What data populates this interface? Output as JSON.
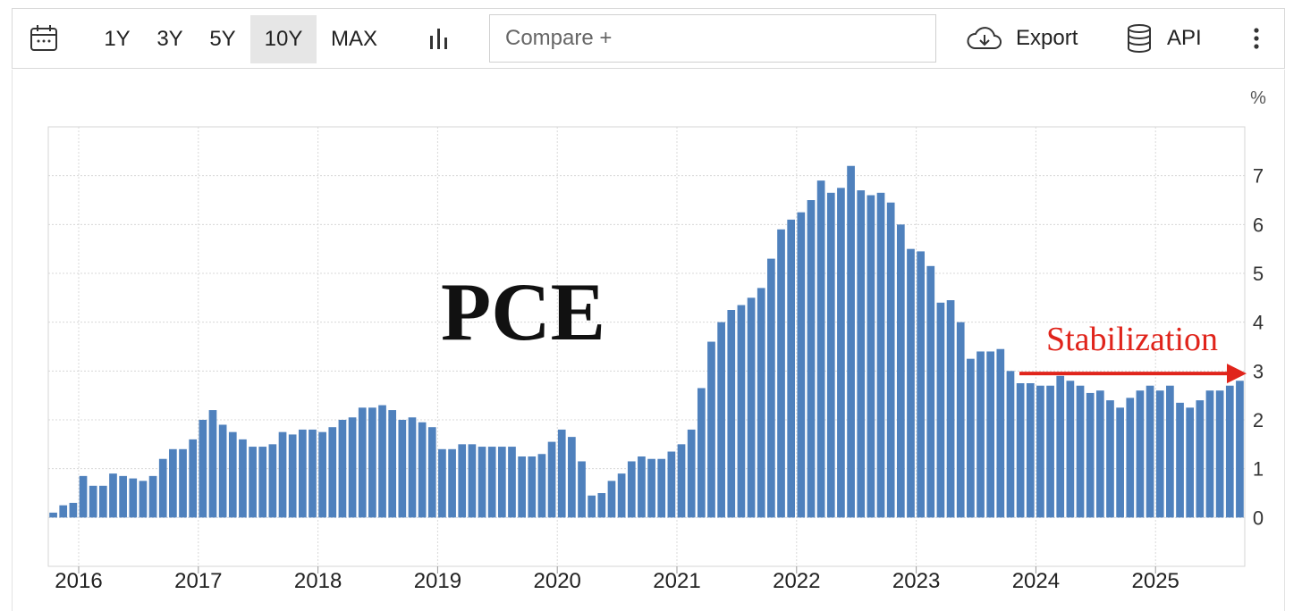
{
  "toolbar": {
    "ranges": [
      "1Y",
      "3Y",
      "5Y",
      "10Y",
      "MAX"
    ],
    "active_range": "10Y",
    "compare_placeholder": "Compare +",
    "export_label": "Export",
    "api_label": "API",
    "icons": [
      "calendar-icon",
      "bar-chart-icon",
      "cloud-download-icon",
      "database-icon",
      "more-vertical-icon"
    ]
  },
  "chart_data": {
    "type": "bar",
    "title": "PCE",
    "unit_label": "%",
    "annotation": "Stabilization",
    "annotation_color": "#e0241b",
    "bar_color": "#4f81bd",
    "ylim": [
      -1,
      8
    ],
    "yticks": [
      0,
      1,
      2,
      3,
      4,
      5,
      6,
      7
    ],
    "x_ticks": [
      "2016",
      "2017",
      "2018",
      "2019",
      "2020",
      "2021",
      "2022",
      "2023",
      "2024",
      "2025"
    ],
    "x_start": "2015-10",
    "values": [
      0.1,
      0.25,
      0.3,
      0.85,
      0.65,
      0.65,
      0.9,
      0.85,
      0.8,
      0.75,
      0.85,
      1.2,
      1.4,
      1.4,
      1.6,
      2.0,
      2.2,
      1.9,
      1.75,
      1.6,
      1.45,
      1.45,
      1.5,
      1.75,
      1.7,
      1.8,
      1.8,
      1.75,
      1.85,
      2.0,
      2.05,
      2.25,
      2.25,
      2.3,
      2.2,
      2.0,
      2.05,
      1.95,
      1.85,
      1.4,
      1.4,
      1.5,
      1.5,
      1.45,
      1.45,
      1.45,
      1.45,
      1.25,
      1.25,
      1.3,
      1.55,
      1.8,
      1.65,
      1.15,
      0.45,
      0.5,
      0.75,
      0.9,
      1.15,
      1.25,
      1.2,
      1.2,
      1.35,
      1.5,
      1.8,
      2.65,
      3.6,
      4.0,
      4.25,
      4.35,
      4.5,
      4.7,
      5.3,
      5.9,
      6.1,
      6.25,
      6.5,
      6.9,
      6.65,
      6.75,
      7.2,
      6.7,
      6.6,
      6.65,
      6.45,
      6.0,
      5.5,
      5.45,
      5.15,
      4.4,
      4.45,
      4.0,
      3.25,
      3.4,
      3.4,
      3.45,
      3.0,
      2.75,
      2.75,
      2.7,
      2.7,
      2.9,
      2.8,
      2.7,
      2.55,
      2.6,
      2.4,
      2.25,
      2.45,
      2.6,
      2.7,
      2.6,
      2.7,
      2.35,
      2.25,
      2.4,
      2.6,
      2.6,
      2.7,
      2.8
    ]
  }
}
